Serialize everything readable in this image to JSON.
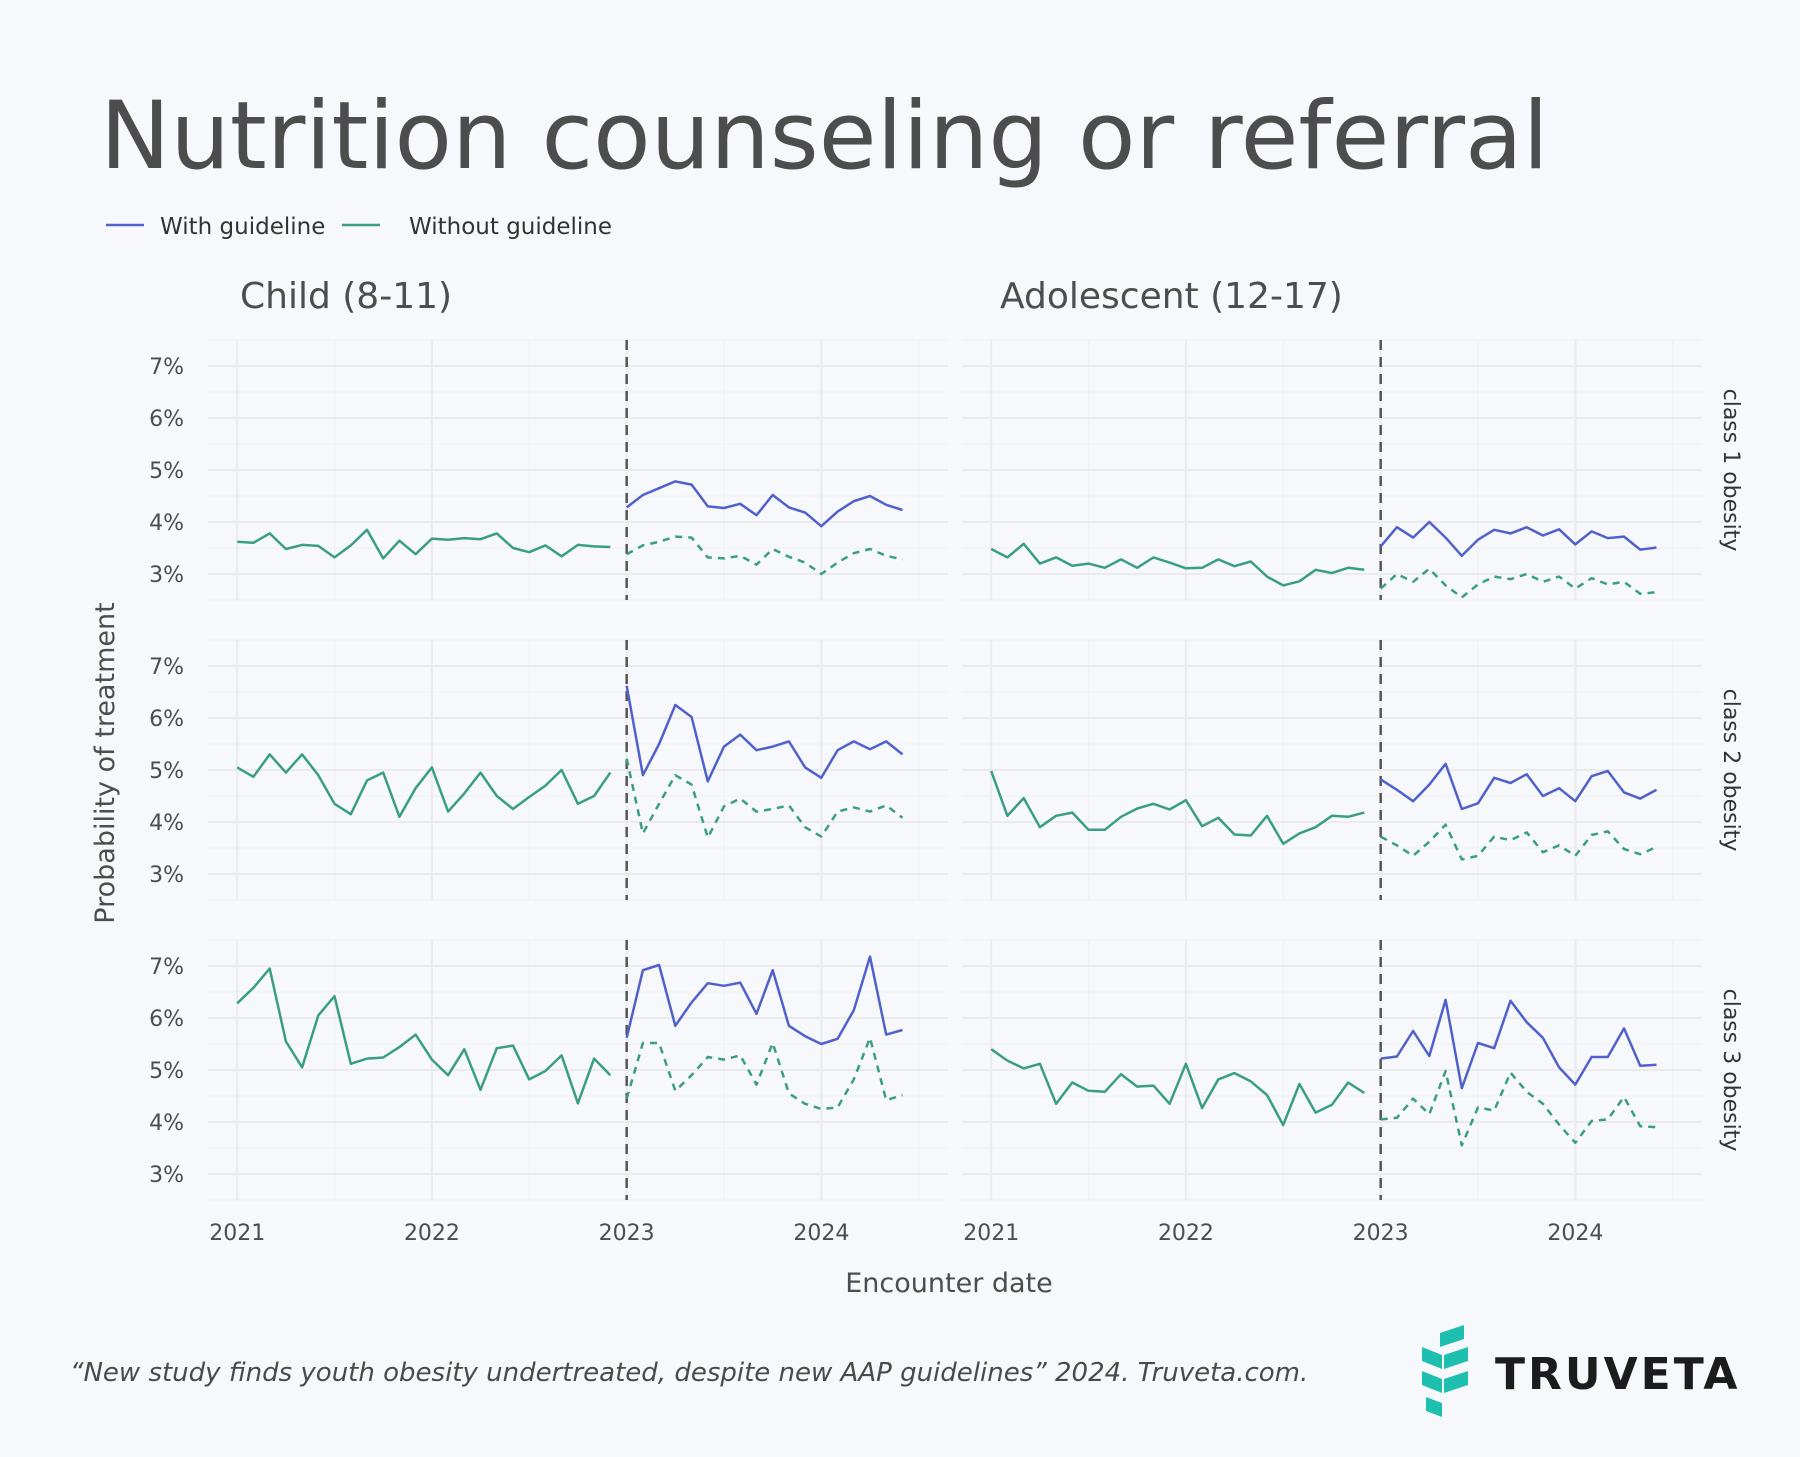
{
  "title": "Nutrition counseling or referral",
  "legend": [
    {
      "label": "With guideline",
      "color": "#5061cc"
    },
    {
      "label": "Without guideline",
      "color": "#3a9e85"
    }
  ],
  "colors": {
    "with": "#5061cc",
    "without": "#3a9e85",
    "grid": "#ebebeb",
    "vline": "#555555",
    "brand": "#1fbfb0"
  },
  "footer": "“New study finds youth obesity undertreated, despite new AAP guidelines” 2024. Truveta.com.",
  "brand": {
    "name": "TRUVETA",
    "icon": "truveta-chevron-logo-icon"
  },
  "chart_data": {
    "type": "line",
    "xlabel": "Encounter date",
    "ylabel": "Probability of treatment",
    "columns": [
      "Child (8-11)",
      "Adolescent (12-17)"
    ],
    "rows": [
      "class 1 obesity",
      "class 2 obesity",
      "class 3 obesity"
    ],
    "x_ticks": [
      "2021",
      "2022",
      "2023",
      "2024"
    ],
    "x_tick_values": [
      2021,
      2022,
      2023,
      2024
    ],
    "y_ticks": [
      "3%",
      "4%",
      "5%",
      "6%",
      "7%"
    ],
    "y_tick_values": [
      3,
      4,
      5,
      6,
      7
    ],
    "ylim": [
      2.5,
      7.5
    ],
    "guideline_date": 2023.0,
    "pre_start": 2021.0,
    "post_start": 2023.0,
    "step": 0.0833,
    "series_names": {
      "pre": "Without guideline",
      "post_with": "With guideline",
      "post_without": "Without guideline (counterfactual)"
    },
    "panels": [
      {
        "column": "Child (8-11)",
        "row": "class 1 obesity",
        "pre": [
          3.62,
          3.6,
          3.78,
          3.48,
          3.56,
          3.54,
          3.32,
          3.55,
          3.85,
          3.3,
          3.64,
          3.38,
          3.68,
          3.66,
          3.69,
          3.67,
          3.78,
          3.5,
          3.42,
          3.55,
          3.34,
          3.56,
          3.53,
          3.52
        ],
        "post_with": [
          4.28,
          4.52,
          4.65,
          4.78,
          4.72,
          4.3,
          4.27,
          4.35,
          4.13,
          4.52,
          4.28,
          4.18,
          3.92,
          4.2,
          4.4,
          4.5,
          4.33,
          4.23
        ],
        "post_without": [
          3.38,
          3.55,
          3.62,
          3.72,
          3.7,
          3.32,
          3.3,
          3.35,
          3.18,
          3.48,
          3.33,
          3.22,
          3.0,
          3.22,
          3.4,
          3.48,
          3.35,
          3.28
        ]
      },
      {
        "column": "Adolescent (12-17)",
        "row": "class 1 obesity",
        "pre": [
          3.48,
          3.32,
          3.58,
          3.2,
          3.32,
          3.16,
          3.2,
          3.12,
          3.28,
          3.12,
          3.32,
          3.22,
          3.11,
          3.12,
          3.28,
          3.15,
          3.24,
          2.95,
          2.78,
          2.86,
          3.08,
          3.02,
          3.12,
          3.08
        ],
        "post_with": [
          3.53,
          3.9,
          3.7,
          4.0,
          3.7,
          3.35,
          3.66,
          3.85,
          3.78,
          3.9,
          3.74,
          3.86,
          3.57,
          3.82,
          3.69,
          3.72,
          3.47,
          3.51
        ],
        "post_without": [
          2.72,
          3.0,
          2.85,
          3.1,
          2.78,
          2.55,
          2.8,
          2.95,
          2.9,
          3.0,
          2.85,
          2.95,
          2.72,
          2.92,
          2.8,
          2.85,
          2.62,
          2.65
        ]
      },
      {
        "column": "Child (8-11)",
        "row": "class 2 obesity",
        "pre": [
          5.05,
          4.87,
          5.3,
          4.95,
          5.3,
          4.9,
          4.35,
          4.15,
          4.8,
          4.95,
          4.1,
          4.65,
          5.05,
          4.2,
          4.55,
          4.95,
          4.5,
          4.25,
          4.48,
          4.7,
          5.0,
          4.35,
          4.5,
          4.95
        ],
        "post_with": [
          6.62,
          4.9,
          5.5,
          6.25,
          6.02,
          4.78,
          5.45,
          5.68,
          5.38,
          5.45,
          5.55,
          5.05,
          4.85,
          5.38,
          5.55,
          5.4,
          5.55,
          5.3
        ],
        "post_without": [
          5.22,
          3.78,
          4.35,
          4.9,
          4.72,
          3.7,
          4.3,
          4.45,
          4.2,
          4.25,
          4.32,
          3.9,
          3.72,
          4.2,
          4.28,
          4.2,
          4.32,
          4.08
        ]
      },
      {
        "column": "Adolescent (12-17)",
        "row": "class 2 obesity",
        "pre": [
          4.98,
          4.12,
          4.46,
          3.9,
          4.12,
          4.18,
          3.85,
          3.85,
          4.1,
          4.26,
          4.35,
          4.24,
          4.42,
          3.92,
          4.08,
          3.76,
          3.74,
          4.12,
          3.58,
          3.78,
          3.9,
          4.12,
          4.1,
          4.18
        ],
        "post_with": [
          4.82,
          4.62,
          4.4,
          4.72,
          5.12,
          4.25,
          4.36,
          4.85,
          4.75,
          4.92,
          4.5,
          4.65,
          4.4,
          4.88,
          4.98,
          4.57,
          4.45,
          4.62
        ],
        "post_without": [
          3.72,
          3.55,
          3.35,
          3.62,
          3.95,
          3.28,
          3.35,
          3.72,
          3.65,
          3.8,
          3.42,
          3.55,
          3.35,
          3.75,
          3.82,
          3.48,
          3.38,
          3.52
        ]
      },
      {
        "column": "Child (8-11)",
        "row": "class 3 obesity",
        "pre": [
          6.28,
          6.58,
          6.95,
          5.55,
          5.05,
          6.05,
          6.42,
          5.12,
          5.22,
          5.24,
          5.44,
          5.68,
          5.2,
          4.9,
          5.4,
          4.62,
          5.42,
          5.47,
          4.82,
          4.98,
          5.28,
          4.36,
          5.22,
          4.9
        ],
        "post_with": [
          5.62,
          6.92,
          7.02,
          5.85,
          6.3,
          6.67,
          6.62,
          6.68,
          6.08,
          6.92,
          5.85,
          5.65,
          5.5,
          5.6,
          6.15,
          7.18,
          5.68,
          5.77
        ],
        "post_without": [
          4.45,
          5.52,
          5.52,
          4.6,
          4.9,
          5.25,
          5.2,
          5.28,
          4.72,
          5.52,
          4.55,
          4.35,
          4.25,
          4.28,
          4.82,
          5.62,
          4.42,
          4.52
        ]
      },
      {
        "column": "Adolescent (12-17)",
        "row": "class 3 obesity",
        "pre": [
          5.4,
          5.18,
          5.03,
          5.12,
          4.35,
          4.76,
          4.6,
          4.58,
          4.92,
          4.68,
          4.7,
          4.35,
          5.12,
          4.27,
          4.82,
          4.94,
          4.78,
          4.52,
          3.94,
          4.73,
          4.18,
          4.33,
          4.76,
          4.56
        ],
        "post_with": [
          5.22,
          5.26,
          5.75,
          5.27,
          6.35,
          4.65,
          5.52,
          5.42,
          6.33,
          5.92,
          5.62,
          5.05,
          4.72,
          5.25,
          5.25,
          5.8,
          5.08,
          5.1
        ],
        "post_without": [
          4.05,
          4.08,
          4.45,
          4.15,
          4.98,
          3.55,
          4.28,
          4.22,
          4.95,
          4.58,
          4.35,
          3.95,
          3.6,
          4.02,
          4.05,
          4.48,
          3.92,
          3.9
        ]
      }
    ]
  }
}
